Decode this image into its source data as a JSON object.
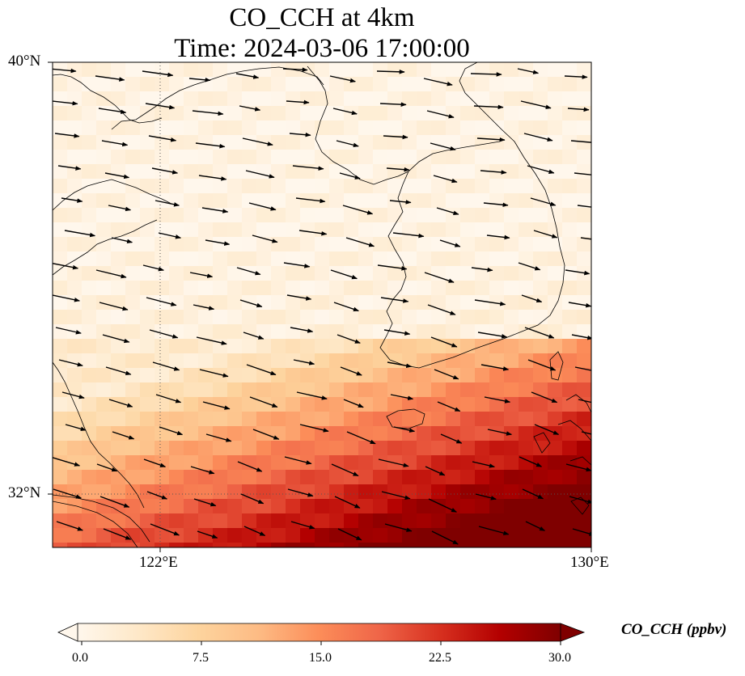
{
  "title": "CO_CCH at 4km",
  "subtitle": "Time: 2024-03-06 17:00:00",
  "lat_ticks": [
    "40°N",
    "32°N"
  ],
  "lon_ticks": [
    "122°E",
    "130°E"
  ],
  "colorbar": {
    "label": "CO_CCH (ppbv)",
    "ticks": [
      "0.0",
      "7.5",
      "15.0",
      "22.5",
      "30.0"
    ],
    "min": 0,
    "max": 30,
    "colormap": [
      "#fff7ec",
      "#fee8c8",
      "#fdd49e",
      "#fdbb84",
      "#fc8d59",
      "#ef6548",
      "#d7301f",
      "#b30000",
      "#7f0000"
    ],
    "extend": "both"
  },
  "map": {
    "extent": {
      "lon": [
        120,
        130
      ],
      "lat": [
        31,
        40
      ]
    },
    "gridlines": {
      "lon": 122,
      "lat": 32,
      "style": "dotted"
    },
    "field": "CO concentration at 4 km, low over Yellow Sea and Korea, high (20-30 ppbv) in south-east toward East China Sea",
    "wind_vectors": "eastward to east-south-eastward"
  }
}
